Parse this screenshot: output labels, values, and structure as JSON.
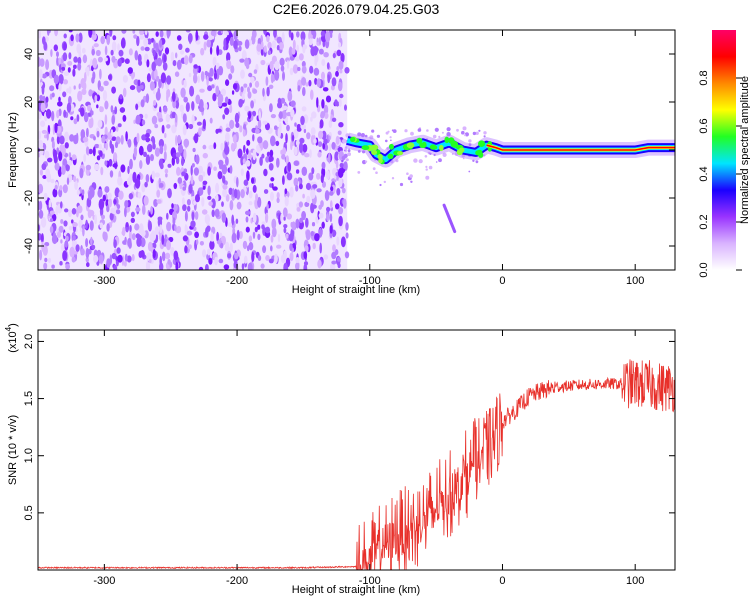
{
  "title": "C2E6.2026.079.04.25.G03",
  "chart_data": [
    {
      "type": "heatmap",
      "name": "spectrogram",
      "xlabel": "Height of straight line (km)",
      "ylabel": "Frequency (Hz)",
      "xlim": [
        -350,
        130
      ],
      "ylim": [
        -50,
        50
      ],
      "xticks": [
        -300,
        -200,
        -100,
        0,
        100
      ],
      "xtick_labels": [
        "-300",
        "-200",
        "-100",
        "0",
        "100"
      ],
      "yticks": [
        -40,
        -20,
        0,
        20,
        40
      ],
      "ytick_labels": [
        "-40",
        "-20",
        "0",
        "20",
        "40"
      ],
      "noise_region_x": [
        -350,
        -117
      ],
      "signal_track": {
        "x": [
          -117,
          -110,
          -100,
          -95,
          -88,
          -80,
          -70,
          -60,
          -50,
          -40,
          -30,
          -20,
          -12,
          -5,
          0,
          20,
          40,
          60,
          80,
          100,
          110,
          130
        ],
        "freq_hz": [
          4,
          3,
          2,
          -2,
          -4,
          0,
          2,
          3,
          1,
          3,
          0,
          -1,
          2,
          1,
          0,
          0,
          0,
          0,
          0,
          0,
          1,
          1
        ]
      },
      "streak": {
        "x": [
          -44,
          -36
        ],
        "freq_hz": [
          -23,
          -34
        ]
      },
      "colorbar": {
        "label": "Normalized spectral amplitude",
        "range": [
          0,
          1
        ],
        "ticks": [
          0.0,
          0.2,
          0.4,
          0.6,
          0.8
        ],
        "tick_labels": [
          "0.0",
          "0.2",
          "0.4",
          "0.6",
          "0.8"
        ],
        "colors": [
          "#ffffff",
          "#d9b3ff",
          "#9933ff",
          "#1a00ff",
          "#00e5ff",
          "#22ff22",
          "#ffff00",
          "#ff8800",
          "#ff0000",
          "#ff0066"
        ]
      }
    },
    {
      "type": "line",
      "name": "snr",
      "xlabel": "Height of straight line (km)",
      "ylabel": "SNR (10 * v/v)",
      "multiplier": "(x10",
      "multiplier_exp": "4",
      "multiplier_close": ")",
      "xlim": [
        -350,
        130
      ],
      "ylim": [
        0,
        2.1
      ],
      "xticks": [
        -300,
        -200,
        -100,
        0,
        100
      ],
      "xtick_labels": [
        "-300",
        "-200",
        "-100",
        "0",
        "100"
      ],
      "yticks": [
        0.5,
        1.0,
        1.5,
        2.0
      ],
      "ytick_labels": [
        "0.5",
        "1.0",
        "1.5",
        "2.0"
      ],
      "color": "#e8302a",
      "series": [
        {
          "name": "SNR",
          "x": [
            -350,
            -300,
            -250,
            -200,
            -150,
            -110,
            -100,
            -90,
            -80,
            -70,
            -60,
            -50,
            -40,
            -30,
            -20,
            -15,
            -10,
            -5,
            0,
            10,
            20,
            30,
            40,
            60,
            80,
            90,
            100,
            110,
            120,
            130
          ],
          "y": [
            0.02,
            0.02,
            0.02,
            0.02,
            0.02,
            0.03,
            0.08,
            0.22,
            0.3,
            0.35,
            0.42,
            0.55,
            0.65,
            0.8,
            0.95,
            1.02,
            1.07,
            1.17,
            1.3,
            1.4,
            1.52,
            1.57,
            1.6,
            1.62,
            1.63,
            1.63,
            1.63,
            1.62,
            1.6,
            1.6
          ]
        }
      ]
    }
  ]
}
